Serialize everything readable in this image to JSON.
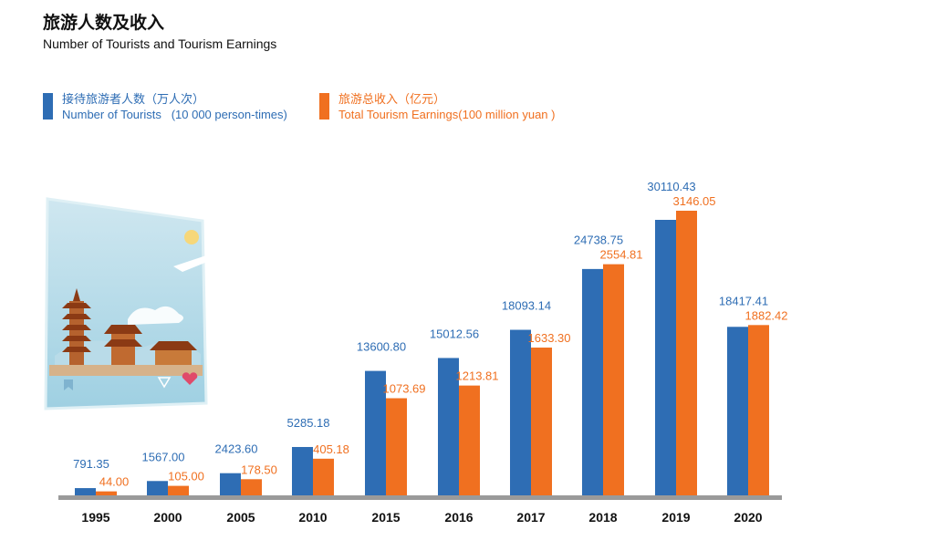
{
  "header": {
    "title_cn": "旅游人数及收入",
    "title_en": "Number of Tourists and Tourism Earnings"
  },
  "legend": [
    {
      "line1": "接待旅游者人数（万人次）",
      "line2": "Number of Tourists   (10 000 person-times)",
      "color": "#2e6db4"
    },
    {
      "line1": "旅游总收入（亿元）",
      "line2": "Total Tourism Earnings(100 million yuan )",
      "color": "#f07020"
    }
  ],
  "colors": {
    "axis": "#9a9a9a"
  },
  "chart_data": {
    "type": "bar",
    "title": "旅游人数及收入 Number of Tourists and Tourism Earnings",
    "categories": [
      "1995",
      "2000",
      "2005",
      "2010",
      "2015",
      "2016",
      "2017",
      "2018",
      "2019",
      "2020"
    ],
    "series": [
      {
        "name": "Number of Tourists (10 000 person-times)",
        "color": "#2e6db4",
        "values": [
          791.35,
          1567.0,
          2423.6,
          5285.18,
          13600.8,
          15012.56,
          18093.14,
          24738.75,
          30110.43,
          18417.41
        ],
        "labels": [
          "791.35",
          "1567.00",
          "2423.60",
          "5285.18",
          "13600.80",
          "15012.56",
          "18093.14",
          "24738.75",
          "30110.43",
          "18417.41"
        ]
      },
      {
        "name": "Total Tourism Earnings (100 million yuan)",
        "color": "#f07020",
        "values": [
          44.0,
          105.0,
          178.5,
          405.18,
          1073.69,
          1213.81,
          1633.3,
          2554.81,
          3146.05,
          1882.42
        ],
        "labels": [
          "44.00",
          "105.00",
          "178.50",
          "405.18",
          "1073.69",
          "1213.81",
          "1633.30",
          "2554.81",
          "3146.05",
          "1882.42"
        ]
      }
    ],
    "legend_position": "top-left",
    "grid": false
  }
}
